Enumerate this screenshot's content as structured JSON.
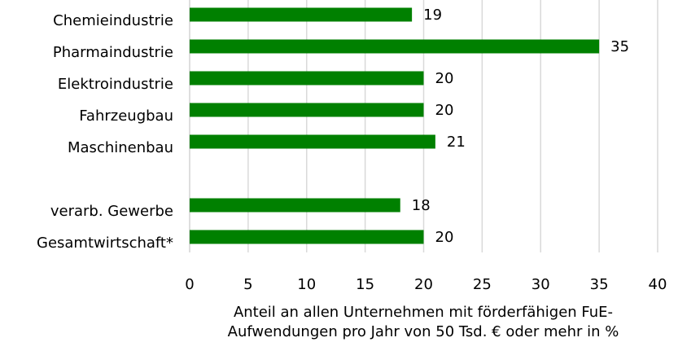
{
  "chart_data": {
    "type": "barh",
    "categories": [
      "Chemieindustrie",
      "Pharmaindustrie",
      "Elektroindustrie",
      "Fahrzeugbau",
      "Maschinenbau",
      null,
      "verarb. Gewerbe",
      "Gesamtwirtschaft*"
    ],
    "values": [
      19,
      35,
      20,
      20,
      21,
      null,
      18,
      20
    ],
    "color": "#008000",
    "xlim": [
      0,
      40
    ],
    "xticks": [
      0,
      5,
      10,
      15,
      20,
      25,
      30,
      35,
      40
    ],
    "grid": true,
    "xlabel": [
      "Anteil an allen Unternehmen mit förderfähigen FuE-",
      "Aufwendungen pro Jahr von 50 Tsd. € oder mehr in %"
    ]
  }
}
